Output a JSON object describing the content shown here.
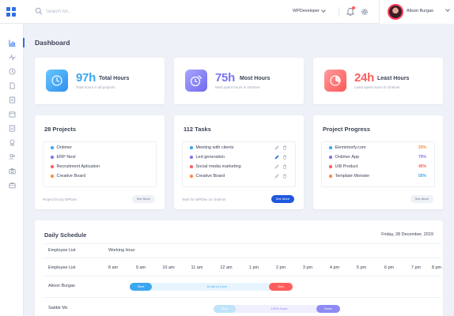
{
  "search": {
    "placeholder": "Search for..."
  },
  "header": {
    "workspace": "WPDeveloper",
    "user_name": "Alison Burgas"
  },
  "sidebar": {
    "items": [
      {
        "icon": "bar-chart-icon",
        "active": true
      },
      {
        "icon": "activity-icon",
        "active": false
      },
      {
        "icon": "clock-icon",
        "active": false
      },
      {
        "icon": "file-icon",
        "active": false
      },
      {
        "icon": "list-icon",
        "active": false
      },
      {
        "icon": "calendar-icon",
        "active": false
      },
      {
        "icon": "checklist-icon",
        "active": false
      },
      {
        "icon": "award-icon",
        "active": false
      },
      {
        "icon": "users-icon",
        "active": false
      },
      {
        "icon": "camera-icon",
        "active": false
      },
      {
        "icon": "briefcase-icon",
        "active": false
      }
    ]
  },
  "page": {
    "title": "Dashboard"
  },
  "stats": [
    {
      "value": "97h",
      "label": "Total Hours",
      "sub": "Total hours in all projects",
      "color": "#3aa7f0"
    },
    {
      "value": "75h",
      "label": "Most Hours",
      "sub": "Most spent hours in Ontimer",
      "color": "#7b76f0"
    },
    {
      "value": "24h",
      "label": "Least Hours",
      "sub": "Least spent hours in Ontimer",
      "color": "#ff5d5d"
    }
  ],
  "projects": {
    "title": "28 Projects",
    "items": [
      {
        "name": "Ontimer",
        "color": "#3aa7f0"
      },
      {
        "name": "ERP Next",
        "color": "#7b76f0"
      },
      {
        "name": "Recruitment Aplication",
        "color": "#ff5d5d"
      },
      {
        "name": "Creative Board",
        "color": "#ff8a3d"
      }
    ],
    "footer": "Project list by WPDev",
    "button": "See More"
  },
  "tasks": {
    "title": "112 Tasks",
    "items": [
      {
        "name": "Meeting with clients",
        "color": "#3aa7f0"
      },
      {
        "name": "Led generation",
        "color": "#7b76f0"
      },
      {
        "name": "Social media marketing",
        "color": "#ff5d5d"
      },
      {
        "name": "Creative Board",
        "color": "#ff8a3d"
      }
    ],
    "footer": "Task for WPDev on Ontimer",
    "button": "See More"
  },
  "progress": {
    "title": "Project Progress",
    "items": [
      {
        "name": "Elemintorfy.com",
        "value": "20%",
        "color": "#3aa7f0",
        "accent": "#ff8a3d"
      },
      {
        "name": "Ontimer App",
        "value": "70%",
        "color": "#7b76f0",
        "accent": "#7b76f0"
      },
      {
        "name": "UI8 Product",
        "value": "40%",
        "color": "#ff5d5d",
        "accent": "#ff5d5d"
      },
      {
        "name": "Template Monster",
        "value": "55%",
        "color": "#ff8a3d",
        "accent": "#3aa7f0"
      }
    ],
    "button": "See More"
  },
  "schedule": {
    "title": "Daily Schedule",
    "date": "Friday, 28 December, 2019",
    "employee_list_label": "Employee List",
    "working_hour_label": "Working Hour",
    "hours": [
      "8 am",
      "9 am",
      "10 am",
      "11 am",
      "12 am",
      "1 pm",
      "2 pm",
      "3 pm",
      "4 pm",
      "5 pm",
      "6 pm",
      "7 pm",
      "8 pm"
    ],
    "rows": [
      {
        "name": "Alison Burgas",
        "start_label": "Start",
        "mid_label": "10 am to 2 pm",
        "end_label": "End"
      },
      {
        "name": "Sabbir Mc",
        "start_label": "Start",
        "mid_label": "100% Done",
        "end_label": "Done"
      }
    ]
  }
}
